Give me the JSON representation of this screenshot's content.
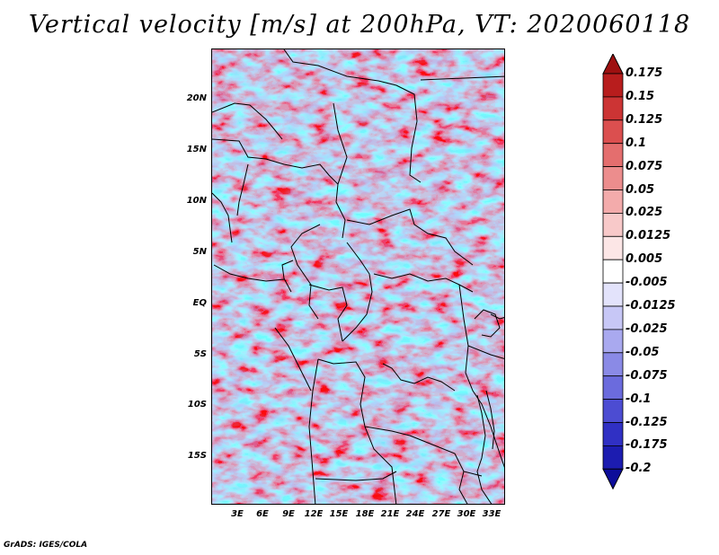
{
  "title": "Vertical velocity [m/s] at 200hPa, VT: 2020060118",
  "credit": "GrADS: IGES/COLA",
  "lat_labels": [
    "20N",
    "15N",
    "10N",
    "5N",
    "EQ",
    "5S",
    "10S",
    "15S"
  ],
  "lon_labels": [
    "3E",
    "6E",
    "9E",
    "12E",
    "15E",
    "18E",
    "21E",
    "24E",
    "27E",
    "30E",
    "33E"
  ],
  "colorbar": {
    "labels": [
      "0.175",
      "0.15",
      "0.125",
      "0.1",
      "0.075",
      "0.05",
      "0.025",
      "0.0125",
      "0.005",
      "-0.005",
      "-0.0125",
      "-0.025",
      "-0.05",
      "-0.075",
      "-0.1",
      "-0.125",
      "-0.175",
      "-0.2"
    ],
    "colors": [
      "#9e1010",
      "#b81d1d",
      "#cc3434",
      "#db4f4f",
      "#e46e6e",
      "#ec8d8d",
      "#f3abab",
      "#f8c9c9",
      "#fce6e6",
      "#ffffff",
      "#e3e3fb",
      "#c7c7f6",
      "#a9a9ef",
      "#8a8ae6",
      "#6b6bdd",
      "#4c4cd2",
      "#3030c4",
      "#1c1cb0",
      "#0d0d9a"
    ]
  },
  "legend_colors": {
    "positive_max": "#9e1010",
    "negative_max": "#0d0d9a",
    "neutral": "#ffffff"
  }
}
